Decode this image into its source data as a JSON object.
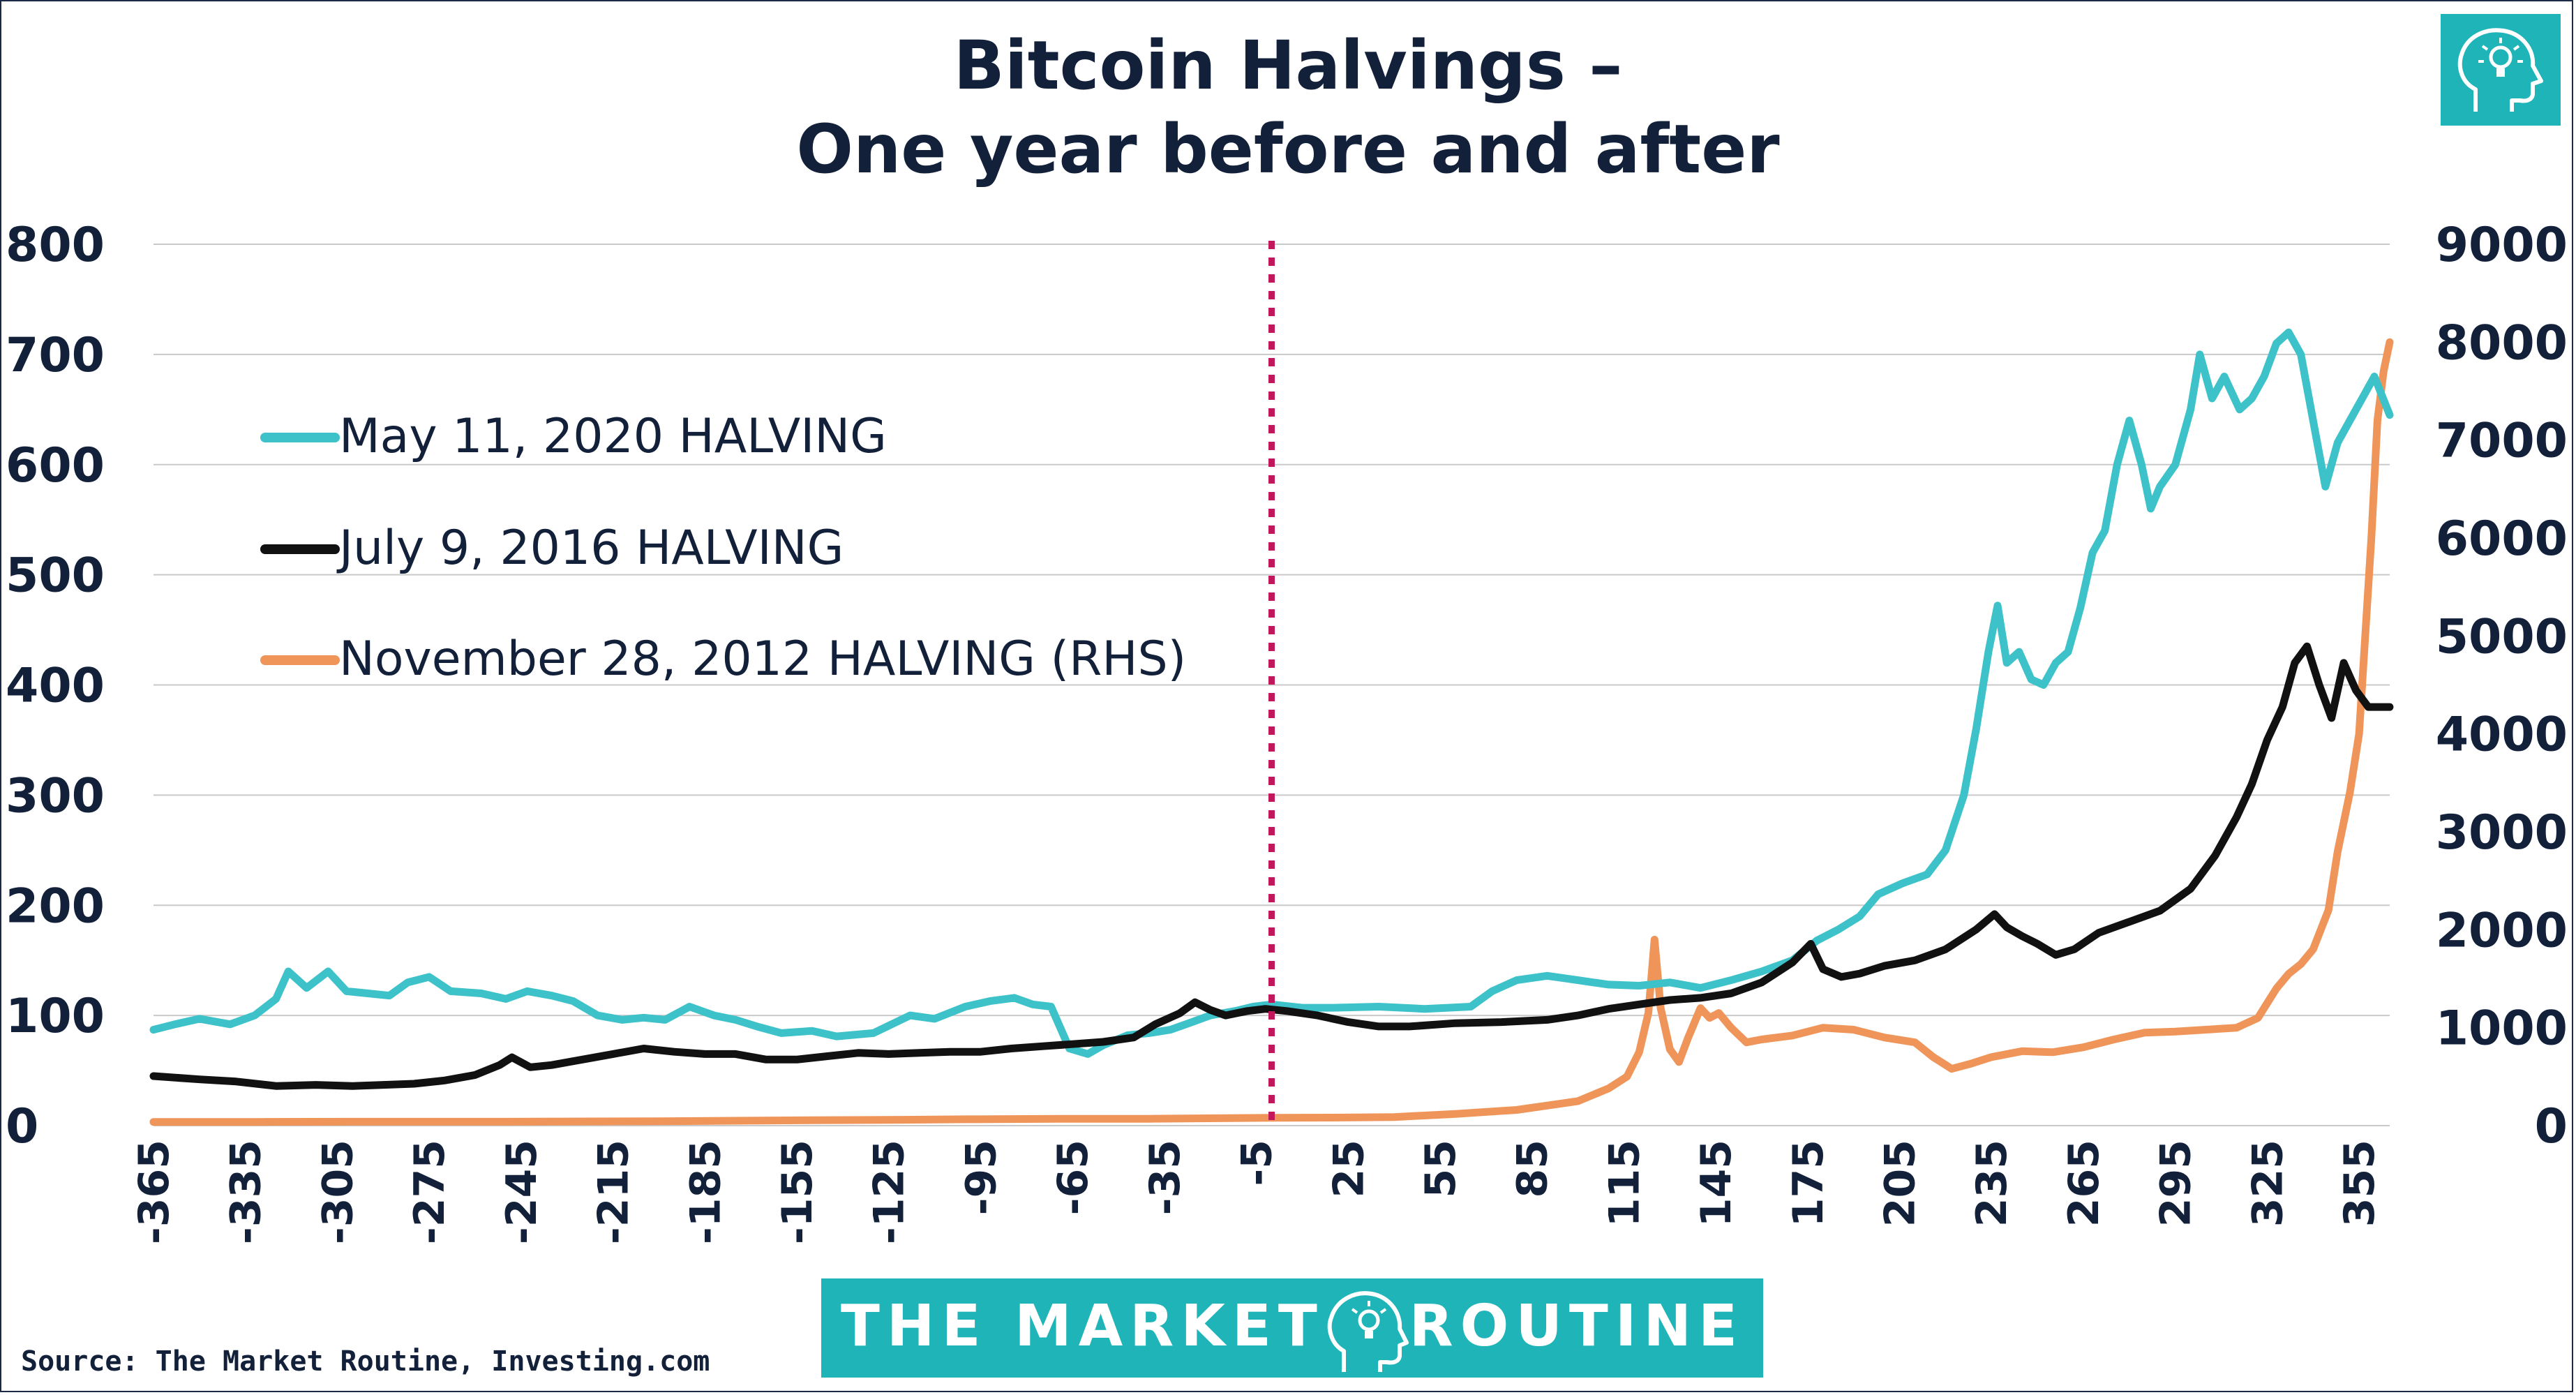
{
  "colors": {
    "background": "#ffffff",
    "text": "#12203a",
    "grid": "#c9c9c9",
    "halving_marker": "#c2185b",
    "brand_teal": "#1fb5b8",
    "series_2020": "#3cc2c8",
    "series_2016": "#111111",
    "series_2012": "#f0955a"
  },
  "logo": {
    "icon": "head-lightbulb-icon"
  },
  "brand": {
    "left": "THE MARKET",
    "right": "ROUTINE",
    "icon": "head-lightbulb-icon"
  },
  "source": "Source: The Market Routine, Investing.com",
  "chart_data": {
    "type": "line",
    "title": [
      "Bitcoin Halvings –",
      "One year before and after"
    ],
    "xlabel": "",
    "ylabel": "",
    "xlim": [
      -365,
      365
    ],
    "ylim": [
      0,
      800
    ],
    "y2lim": [
      0,
      9000
    ],
    "x_ticks": [
      -365,
      -335,
      -305,
      -275,
      -245,
      -215,
      -185,
      -155,
      -125,
      -95,
      -65,
      -35,
      -5,
      25,
      55,
      85,
      115,
      145,
      175,
      205,
      235,
      265,
      295,
      325,
      355
    ],
    "y_ticks": [
      0,
      100,
      200,
      300,
      400,
      500,
      600,
      700,
      800
    ],
    "y2_ticks": [
      0,
      1000,
      2000,
      3000,
      4000,
      5000,
      6000,
      7000,
      8000,
      9000
    ],
    "grid": true,
    "legend_position": "upper-left",
    "vertical_line_x": 0,
    "series": [
      {
        "name": "May 11, 2020 HALVING",
        "axis": "left",
        "color": "#3cc2c8",
        "points": [
          [
            -365,
            87
          ],
          [
            -358,
            92
          ],
          [
            -350,
            97
          ],
          [
            -340,
            92
          ],
          [
            -332,
            100
          ],
          [
            -325,
            115
          ],
          [
            -321,
            140
          ],
          [
            -315,
            125
          ],
          [
            -308,
            140
          ],
          [
            -302,
            122
          ],
          [
            -295,
            120
          ],
          [
            -288,
            118
          ],
          [
            -282,
            130
          ],
          [
            -275,
            135
          ],
          [
            -268,
            122
          ],
          [
            -258,
            120
          ],
          [
            -250,
            115
          ],
          [
            -243,
            122
          ],
          [
            -235,
            118
          ],
          [
            -228,
            113
          ],
          [
            -220,
            100
          ],
          [
            -212,
            96
          ],
          [
            -205,
            98
          ],
          [
            -198,
            96
          ],
          [
            -190,
            108
          ],
          [
            -182,
            100
          ],
          [
            -175,
            96
          ],
          [
            -168,
            90
          ],
          [
            -160,
            84
          ],
          [
            -150,
            86
          ],
          [
            -142,
            81
          ],
          [
            -130,
            84
          ],
          [
            -118,
            100
          ],
          [
            -110,
            97
          ],
          [
            -100,
            108
          ],
          [
            -92,
            113
          ],
          [
            -84,
            116
          ],
          [
            -78,
            110
          ],
          [
            -72,
            108
          ],
          [
            -66,
            70
          ],
          [
            -60,
            65
          ],
          [
            -55,
            73
          ],
          [
            -47,
            82
          ],
          [
            -40,
            84
          ],
          [
            -33,
            87
          ],
          [
            -27,
            93
          ],
          [
            -20,
            100
          ],
          [
            -12,
            104
          ],
          [
            -6,
            108
          ],
          [
            0,
            110
          ],
          [
            10,
            107
          ],
          [
            20,
            107
          ],
          [
            35,
            108
          ],
          [
            50,
            106
          ],
          [
            65,
            108
          ],
          [
            72,
            122
          ],
          [
            80,
            132
          ],
          [
            90,
            136
          ],
          [
            100,
            132
          ],
          [
            110,
            128
          ],
          [
            120,
            127
          ],
          [
            130,
            130
          ],
          [
            140,
            125
          ],
          [
            150,
            132
          ],
          [
            160,
            140
          ],
          [
            170,
            150
          ],
          [
            178,
            168
          ],
          [
            185,
            178
          ],
          [
            192,
            190
          ],
          [
            198,
            210
          ],
          [
            206,
            220
          ],
          [
            214,
            228
          ],
          [
            220,
            250
          ],
          [
            226,
            300
          ],
          [
            230,
            360
          ],
          [
            234,
            430
          ],
          [
            237,
            472
          ],
          [
            240,
            420
          ],
          [
            244,
            430
          ],
          [
            248,
            405
          ],
          [
            252,
            400
          ],
          [
            256,
            420
          ],
          [
            260,
            430
          ],
          [
            264,
            470
          ],
          [
            268,
            520
          ],
          [
            272,
            540
          ],
          [
            276,
            600
          ],
          [
            280,
            640
          ],
          [
            284,
            600
          ],
          [
            287,
            560
          ],
          [
            290,
            580
          ],
          [
            295,
            600
          ],
          [
            300,
            650
          ],
          [
            303,
            700
          ],
          [
            307,
            660
          ],
          [
            311,
            680
          ],
          [
            316,
            650
          ],
          [
            320,
            660
          ],
          [
            324,
            680
          ],
          [
            328,
            710
          ],
          [
            332,
            720
          ],
          [
            336,
            700
          ],
          [
            340,
            640
          ],
          [
            344,
            580
          ],
          [
            348,
            620
          ],
          [
            352,
            640
          ],
          [
            356,
            660
          ],
          [
            360,
            680
          ],
          [
            365,
            645
          ]
        ]
      },
      {
        "name": "July 9, 2016 HALVING",
        "axis": "left",
        "color": "#111111",
        "points": [
          [
            -365,
            45
          ],
          [
            -350,
            42
          ],
          [
            -338,
            40
          ],
          [
            -325,
            36
          ],
          [
            -312,
            37
          ],
          [
            -300,
            36
          ],
          [
            -290,
            37
          ],
          [
            -280,
            38
          ],
          [
            -270,
            41
          ],
          [
            -260,
            46
          ],
          [
            -252,
            55
          ],
          [
            -248,
            62
          ],
          [
            -242,
            53
          ],
          [
            -235,
            55
          ],
          [
            -225,
            60
          ],
          [
            -215,
            65
          ],
          [
            -205,
            70
          ],
          [
            -195,
            67
          ],
          [
            -185,
            65
          ],
          [
            -175,
            65
          ],
          [
            -165,
            60
          ],
          [
            -155,
            60
          ],
          [
            -145,
            63
          ],
          [
            -135,
            66
          ],
          [
            -125,
            65
          ],
          [
            -115,
            66
          ],
          [
            -105,
            67
          ],
          [
            -95,
            67
          ],
          [
            -85,
            70
          ],
          [
            -75,
            72
          ],
          [
            -65,
            74
          ],
          [
            -55,
            76
          ],
          [
            -45,
            80
          ],
          [
            -38,
            92
          ],
          [
            -30,
            102
          ],
          [
            -25,
            112
          ],
          [
            -20,
            105
          ],
          [
            -15,
            100
          ],
          [
            -8,
            104
          ],
          [
            -2,
            106
          ],
          [
            5,
            104
          ],
          [
            15,
            100
          ],
          [
            25,
            94
          ],
          [
            35,
            90
          ],
          [
            45,
            90
          ],
          [
            60,
            93
          ],
          [
            75,
            94
          ],
          [
            90,
            96
          ],
          [
            100,
            100
          ],
          [
            110,
            106
          ],
          [
            120,
            110
          ],
          [
            130,
            114
          ],
          [
            140,
            116
          ],
          [
            150,
            120
          ],
          [
            160,
            130
          ],
          [
            170,
            148
          ],
          [
            176,
            165
          ],
          [
            180,
            142
          ],
          [
            186,
            135
          ],
          [
            192,
            138
          ],
          [
            200,
            145
          ],
          [
            210,
            150
          ],
          [
            220,
            160
          ],
          [
            230,
            178
          ],
          [
            236,
            192
          ],
          [
            240,
            180
          ],
          [
            245,
            172
          ],
          [
            250,
            165
          ],
          [
            256,
            155
          ],
          [
            262,
            160
          ],
          [
            270,
            175
          ],
          [
            280,
            185
          ],
          [
            290,
            195
          ],
          [
            300,
            215
          ],
          [
            308,
            245
          ],
          [
            315,
            280
          ],
          [
            320,
            310
          ],
          [
            325,
            350
          ],
          [
            330,
            380
          ],
          [
            334,
            420
          ],
          [
            338,
            435
          ],
          [
            342,
            400
          ],
          [
            346,
            370
          ],
          [
            350,
            420
          ],
          [
            354,
            395
          ],
          [
            358,
            380
          ],
          [
            365,
            380
          ]
        ]
      },
      {
        "name": "November 28, 2012 HALVING (RHS)",
        "axis": "right",
        "color": "#f0955a",
        "points": [
          [
            -365,
            38
          ],
          [
            -330,
            38
          ],
          [
            -300,
            40
          ],
          [
            -250,
            40
          ],
          [
            -200,
            45
          ],
          [
            -150,
            55
          ],
          [
            -120,
            60
          ],
          [
            -100,
            65
          ],
          [
            -70,
            70
          ],
          [
            -40,
            70
          ],
          [
            0,
            80
          ],
          [
            20,
            82
          ],
          [
            40,
            88
          ],
          [
            60,
            120
          ],
          [
            80,
            160
          ],
          [
            100,
            250
          ],
          [
            110,
            380
          ],
          [
            116,
            500
          ],
          [
            120,
            750
          ],
          [
            123,
            1150
          ],
          [
            125,
            1900
          ],
          [
            127,
            1200
          ],
          [
            130,
            780
          ],
          [
            133,
            650
          ],
          [
            136,
            900
          ],
          [
            140,
            1200
          ],
          [
            143,
            1100
          ],
          [
            146,
            1150
          ],
          [
            150,
            1000
          ],
          [
            155,
            850
          ],
          [
            160,
            880
          ],
          [
            170,
            920
          ],
          [
            180,
            1000
          ],
          [
            190,
            980
          ],
          [
            200,
            900
          ],
          [
            210,
            850
          ],
          [
            216,
            700
          ],
          [
            222,
            580
          ],
          [
            228,
            630
          ],
          [
            235,
            700
          ],
          [
            245,
            760
          ],
          [
            255,
            750
          ],
          [
            265,
            800
          ],
          [
            275,
            880
          ],
          [
            285,
            950
          ],
          [
            295,
            960
          ],
          [
            305,
            980
          ],
          [
            315,
            1000
          ],
          [
            322,
            1100
          ],
          [
            328,
            1400
          ],
          [
            332,
            1550
          ],
          [
            336,
            1650
          ],
          [
            340,
            1800
          ],
          [
            345,
            2200
          ],
          [
            348,
            2800
          ],
          [
            352,
            3400
          ],
          [
            355,
            4000
          ],
          [
            357,
            5000
          ],
          [
            359,
            6000
          ],
          [
            361,
            7200
          ],
          [
            363,
            7700
          ],
          [
            365,
            8000
          ]
        ]
      }
    ]
  }
}
